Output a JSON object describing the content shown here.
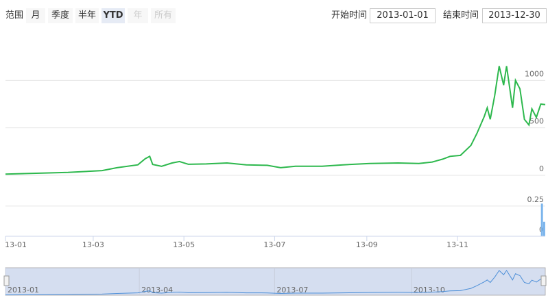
{
  "toolbar": {
    "range_label": "范围",
    "buttons": [
      "月",
      "季度",
      "半年",
      "YTD",
      "年",
      "所有"
    ],
    "selected": 3,
    "disabled": [
      4,
      5
    ],
    "start_label": "开始时间",
    "start_date": "2013-01-01",
    "end_label": "结束时间",
    "end_date": "2013-12-30"
  },
  "chart_data": [
    {
      "type": "line",
      "color": "#2db84d",
      "grid": true,
      "x": [
        0,
        42,
        65,
        75,
        89,
        94,
        97,
        99,
        105,
        112,
        117,
        123,
        135,
        149,
        162,
        176,
        185,
        195,
        213,
        227,
        245,
        264,
        278,
        287,
        294,
        299,
        306,
        313,
        317,
        322,
        324,
        326,
        329,
        332,
        335,
        337,
        341,
        343,
        346,
        349,
        352,
        354,
        357,
        360,
        363
      ],
      "values": [
        13,
        30,
        50,
        80,
        110,
        175,
        200,
        115,
        95,
        130,
        145,
        116,
        120,
        130,
        110,
        105,
        80,
        95,
        95,
        110,
        125,
        130,
        125,
        140,
        170,
        200,
        210,
        315,
        440,
        620,
        710,
        590,
        840,
        1150,
        950,
        1150,
        710,
        1000,
        910,
        590,
        530,
        700,
        610,
        750,
        745
      ],
      "xlim": [
        0,
        363
      ],
      "ylim": [
        0,
        1500
      ],
      "yticks": [
        0,
        500,
        1000
      ],
      "xticks": [
        {
          "value": 0,
          "label": "13-01"
        },
        {
          "value": 59,
          "label": "13-03"
        },
        {
          "value": 120,
          "label": "13-05"
        },
        {
          "value": 181,
          "label": "13-07"
        },
        {
          "value": 243,
          "label": "13-09"
        },
        {
          "value": 304,
          "label": "13-11"
        }
      ]
    },
    {
      "type": "bar",
      "color": "#7cb5ec",
      "grid": true,
      "x": [
        361,
        362.5
      ],
      "values": [
        0.27,
        0.12
      ],
      "xlim": [
        0,
        363
      ],
      "ylim": [
        0,
        0.3
      ],
      "yticks": [
        0,
        0.25
      ]
    }
  ],
  "navigator": {
    "xlim": [
      0,
      363
    ],
    "xticks": [
      {
        "value": 0,
        "label": "2013-01"
      },
      {
        "value": 90,
        "label": "2013-04"
      },
      {
        "value": 181,
        "label": "2013-07"
      },
      {
        "value": 273,
        "label": "2013-10"
      }
    ]
  }
}
